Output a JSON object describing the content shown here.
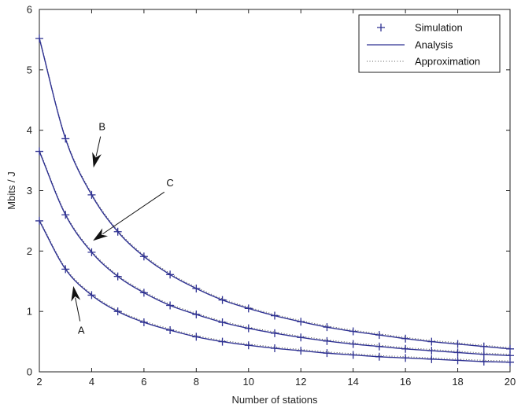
{
  "chart_data": {
    "type": "line",
    "xlabel": "Number of stations",
    "ylabel": "Mbits / J",
    "xlim": [
      2,
      20
    ],
    "ylim": [
      0,
      6
    ],
    "xticks": [
      2,
      4,
      6,
      8,
      10,
      12,
      14,
      16,
      18,
      20
    ],
    "yticks": [
      0,
      1,
      2,
      3,
      4,
      5,
      6
    ],
    "grid": false,
    "legend_position": "top-right",
    "legend": [
      "Simulation",
      "Analysis",
      "Approximation"
    ],
    "line_color": "#2e3192",
    "x": [
      2,
      3,
      4,
      5,
      6,
      7,
      8,
      9,
      10,
      11,
      12,
      13,
      14,
      15,
      16,
      17,
      18,
      19,
      20
    ],
    "series": [
      {
        "values": [
          5.52,
          3.86,
          2.93,
          2.32,
          1.91,
          1.61,
          1.38,
          1.19,
          1.05,
          0.93,
          0.83,
          0.74,
          0.67,
          0.61,
          0.55,
          0.5,
          0.46,
          0.42,
          0.38
        ]
      },
      {
        "values": [
          3.65,
          2.6,
          1.98,
          1.58,
          1.31,
          1.1,
          0.95,
          0.82,
          0.72,
          0.64,
          0.57,
          0.51,
          0.46,
          0.42,
          0.38,
          0.35,
          0.32,
          0.29,
          0.27
        ]
      },
      {
        "values": [
          2.5,
          1.7,
          1.27,
          1.0,
          0.82,
          0.69,
          0.58,
          0.5,
          0.44,
          0.39,
          0.35,
          0.31,
          0.28,
          0.25,
          0.23,
          0.21,
          0.19,
          0.17,
          0.16
        ]
      }
    ],
    "annotations": [
      {
        "text": "B",
        "x": 4.4,
        "y": 4.0,
        "arrow_to": [
          4.07,
          3.38
        ]
      },
      {
        "text": "C",
        "x": 7.0,
        "y": 3.07,
        "arrow_to": [
          4.05,
          2.17
        ]
      },
      {
        "text": "A",
        "x": 3.6,
        "y": 0.63,
        "arrow_to": [
          3.3,
          1.42
        ]
      }
    ]
  }
}
